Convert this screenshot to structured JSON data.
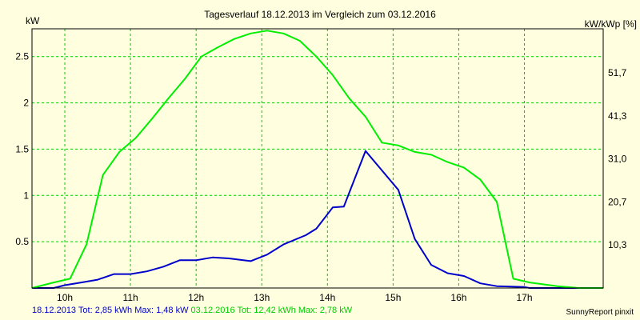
{
  "chart_data": {
    "type": "line",
    "title": "Tagesverlauf 18.12.2013 im Vergleich zum 03.12.2016",
    "ylabel_left": "kW",
    "ylabel_right": "kW/kWp [%]",
    "xlim": [
      9.5,
      18.2
    ],
    "ylim": [
      0,
      2.8
    ],
    "x_ticks": [
      10,
      11,
      12,
      13,
      14,
      15,
      16,
      17
    ],
    "x_tick_labels": [
      "10h",
      "11h",
      "12h",
      "13h",
      "14h",
      "15h",
      "16h",
      "17h"
    ],
    "y_ticks": [
      0.5,
      1,
      1.5,
      2,
      2.5
    ],
    "y_tick_labels": [
      "0.5",
      "1",
      "1.5",
      "2",
      "2.5"
    ],
    "y2_ticks": [
      0.465,
      0.93,
      1.395,
      1.86,
      2.325
    ],
    "y2_tick_labels": [
      "10,3",
      "20,7",
      "31,0",
      "41,3",
      "51,7"
    ],
    "grid": true,
    "series": [
      {
        "name": "18.12.2013",
        "color": "#0000cc",
        "points": [
          [
            9.5,
            0.0
          ],
          [
            9.83,
            0.0
          ],
          [
            10.0,
            0.03
          ],
          [
            10.25,
            0.06
          ],
          [
            10.5,
            0.09
          ],
          [
            10.75,
            0.15
          ],
          [
            11.0,
            0.15
          ],
          [
            11.25,
            0.18
          ],
          [
            11.5,
            0.23
          ],
          [
            11.75,
            0.3
          ],
          [
            12.0,
            0.3
          ],
          [
            12.25,
            0.33
          ],
          [
            12.5,
            0.32
          ],
          [
            12.83,
            0.29
          ],
          [
            13.08,
            0.36
          ],
          [
            13.33,
            0.47
          ],
          [
            13.67,
            0.57
          ],
          [
            13.83,
            0.64
          ],
          [
            14.08,
            0.87
          ],
          [
            14.25,
            0.88
          ],
          [
            14.58,
            1.48
          ],
          [
            14.83,
            1.27
          ],
          [
            15.08,
            1.06
          ],
          [
            15.33,
            0.53
          ],
          [
            15.58,
            0.25
          ],
          [
            15.83,
            0.16
          ],
          [
            16.08,
            0.13
          ],
          [
            16.33,
            0.05
          ],
          [
            16.58,
            0.02
          ],
          [
            17.0,
            0.01
          ],
          [
            17.08,
            0.0
          ],
          [
            17.5,
            0.0
          ],
          [
            18.2,
            0.0
          ]
        ]
      },
      {
        "name": "03.12.2016",
        "color": "#00ee00",
        "points": [
          [
            9.5,
            0.0
          ],
          [
            9.83,
            0.06
          ],
          [
            10.08,
            0.1
          ],
          [
            10.33,
            0.47
          ],
          [
            10.58,
            1.22
          ],
          [
            10.83,
            1.47
          ],
          [
            11.08,
            1.62
          ],
          [
            11.33,
            1.83
          ],
          [
            11.58,
            2.05
          ],
          [
            11.83,
            2.26
          ],
          [
            12.08,
            2.5
          ],
          [
            12.33,
            2.6
          ],
          [
            12.58,
            2.69
          ],
          [
            12.83,
            2.75
          ],
          [
            13.08,
            2.78
          ],
          [
            13.33,
            2.75
          ],
          [
            13.58,
            2.67
          ],
          [
            13.83,
            2.5
          ],
          [
            14.08,
            2.3
          ],
          [
            14.33,
            2.05
          ],
          [
            14.58,
            1.85
          ],
          [
            14.83,
            1.57
          ],
          [
            15.08,
            1.54
          ],
          [
            15.33,
            1.47
          ],
          [
            15.58,
            1.44
          ],
          [
            15.83,
            1.36
          ],
          [
            16.08,
            1.3
          ],
          [
            16.33,
            1.17
          ],
          [
            16.58,
            0.93
          ],
          [
            16.83,
            0.1
          ],
          [
            17.08,
            0.06
          ],
          [
            17.5,
            0.02
          ],
          [
            17.83,
            0.0
          ],
          [
            18.2,
            0.0
          ]
        ]
      }
    ]
  },
  "footer": {
    "series1_text": "18.12.2013 Tot: 2,85 kWh Max: 1,48 kW",
    "series2_text": "03.12.2016 Tot: 12,42 kWh Max: 2,78 kW",
    "credit": "SunnyReport pinxit"
  }
}
